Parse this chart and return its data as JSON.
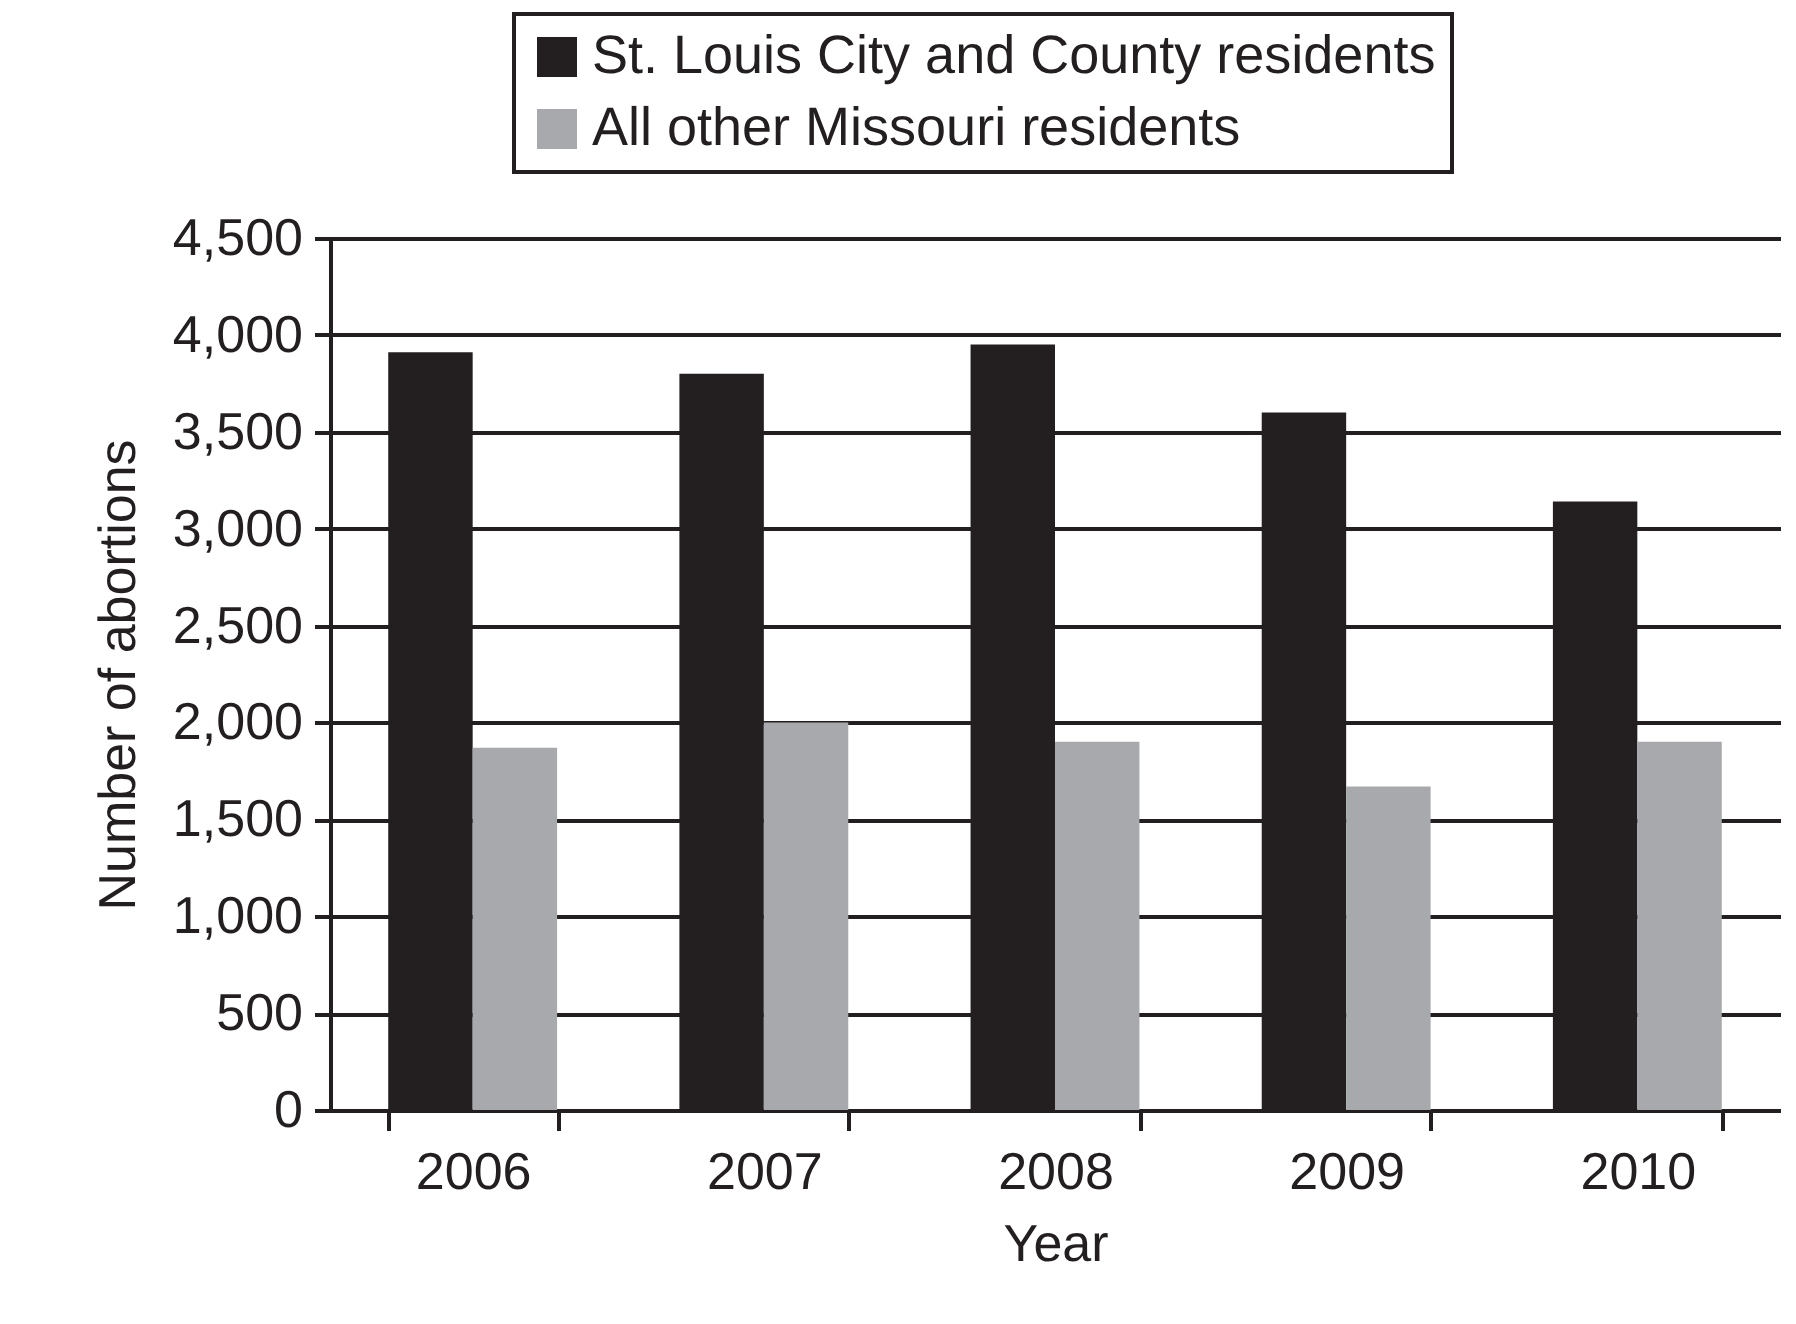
{
  "chart_data": {
    "type": "bar",
    "xlabel": "Year",
    "ylabel": "Number of abortions",
    "categories": [
      "2006",
      "2007",
      "2008",
      "2009",
      "2010"
    ],
    "series": [
      {
        "name": "St. Louis City and County residents",
        "color": "#231f20",
        "values": [
          3910,
          3800,
          3950,
          3600,
          3140
        ]
      },
      {
        "name": "All other Missouri residents",
        "color": "#a7a9ac",
        "values": [
          1870,
          2000,
          1900,
          1670,
          1900
        ]
      }
    ],
    "ylim": [
      0,
      4500
    ],
    "yticks": [
      0,
      500,
      {
        "value": 1000,
        "label": "1,000"
      },
      {
        "value": 1500,
        "label": "1,500"
      },
      {
        "value": 2000,
        "label": "2,000"
      },
      {
        "value": 2500,
        "label": "2,500"
      },
      {
        "value": 3000,
        "label": "3,000"
      },
      {
        "value": 3500,
        "label": "3,500"
      },
      {
        "value": 4000,
        "label": "4,000"
      },
      {
        "value": 4500,
        "label": "4,500"
      }
    ],
    "grid": "y",
    "legend": "top"
  }
}
